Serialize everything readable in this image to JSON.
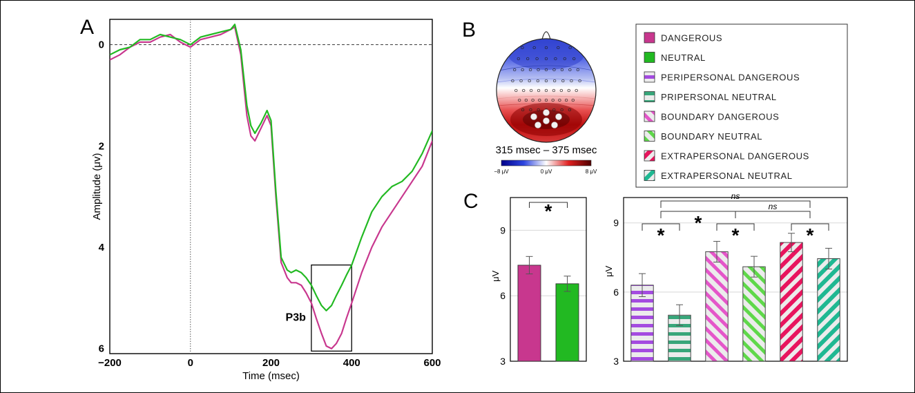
{
  "panel_labels": {
    "a": "A",
    "b": "B",
    "c": "C"
  },
  "colors": {
    "dangerous": "#c8378e",
    "neutral": "#22b922",
    "peripersonal_dangerous": "#a44be0",
    "peripersonal_neutral": "#38a67a",
    "boundary_dangerous": "#e456c9",
    "boundary_neutral": "#5fd84a",
    "extrapersonal_dangerous": "#e8155e",
    "extrapersonal_neutral": "#1fb892"
  },
  "legend": {
    "items": [
      {
        "label": "DANGEROUS",
        "color": "#c8378e",
        "pattern": "solid"
      },
      {
        "label": "NEUTRAL",
        "color": "#22b922",
        "pattern": "solid"
      },
      {
        "label": "PERIPERSONAL DANGEROUS",
        "color": "#a44be0",
        "pattern": "horizontal"
      },
      {
        "label": "PRIPERSONAL NEUTRAL",
        "color": "#38a67a",
        "pattern": "horizontal"
      },
      {
        "label": "BOUNDARY DANGEROUS",
        "color": "#e456c9",
        "pattern": "diagonal-up"
      },
      {
        "label": "BOUNDARY NEUTRAL",
        "color": "#5fd84a",
        "pattern": "diagonal-up"
      },
      {
        "label": "EXTRAPERSONAL DANGEROUS",
        "color": "#e8155e",
        "pattern": "diagonal-down"
      },
      {
        "label": "EXTRAPERSONAL NEUTRAL",
        "color": "#1fb892",
        "pattern": "diagonal-down"
      }
    ]
  },
  "topomap": {
    "time_window": "315 msec – 375 msec",
    "colorbar_ticks": [
      "−8 μV",
      "0 μV",
      "8 μV"
    ]
  },
  "chart_data": [
    {
      "id": "erp",
      "type": "line",
      "xlabel": "Time (msec)",
      "ylabel": "Amplitude  (μv)",
      "xlim": [
        -200,
        600
      ],
      "ylim": [
        -0.5,
        6.1
      ],
      "y_inverted": true,
      "xticks": [
        -200,
        0,
        200,
        400,
        600
      ],
      "yticks": [
        0,
        2,
        4,
        6
      ],
      "x": [
        -200,
        -175,
        -150,
        -125,
        -100,
        -75,
        -50,
        -25,
        0,
        25,
        50,
        75,
        100,
        110,
        125,
        140,
        150,
        160,
        175,
        190,
        200,
        212,
        225,
        240,
        250,
        262,
        275,
        287,
        300,
        312,
        325,
        337,
        350,
        362,
        375,
        387,
        400,
        425,
        450,
        475,
        500,
        525,
        550,
        575,
        600
      ],
      "series": [
        {
          "name": "DANGEROUS",
          "values": [
            0.3,
            0.2,
            0.05,
            -0.05,
            -0.05,
            -0.15,
            -0.2,
            -0.05,
            0.05,
            -0.1,
            -0.15,
            -0.2,
            -0.3,
            -0.35,
            0.2,
            1.4,
            1.8,
            1.9,
            1.65,
            1.4,
            1.6,
            3.0,
            4.3,
            4.6,
            4.7,
            4.7,
            4.75,
            4.9,
            5.1,
            5.4,
            5.7,
            5.95,
            6.0,
            5.9,
            5.7,
            5.4,
            5.1,
            4.5,
            4.0,
            3.6,
            3.3,
            3.0,
            2.7,
            2.4,
            1.9
          ]
        },
        {
          "name": "NEUTRAL",
          "values": [
            0.2,
            0.1,
            0.05,
            -0.1,
            -0.1,
            -0.2,
            -0.15,
            -0.1,
            0.0,
            -0.15,
            -0.2,
            -0.25,
            -0.3,
            -0.4,
            0.1,
            1.2,
            1.6,
            1.75,
            1.55,
            1.3,
            1.5,
            2.9,
            4.2,
            4.45,
            4.5,
            4.45,
            4.5,
            4.6,
            4.75,
            4.95,
            5.15,
            5.25,
            5.15,
            4.95,
            4.75,
            4.55,
            4.35,
            3.8,
            3.3,
            3.0,
            2.8,
            2.7,
            2.5,
            2.15,
            1.7
          ]
        }
      ],
      "annotations": {
        "zero_label": "0",
        "component_label": "P3b",
        "window": [
          300,
          400
        ]
      }
    },
    {
      "id": "bars-main",
      "type": "bar",
      "ylabel": "μV",
      "ylim": [
        3,
        10.5
      ],
      "yticks": [
        3,
        6,
        9
      ],
      "categories": [
        "DANGEROUS",
        "NEUTRAL"
      ],
      "values": [
        7.4,
        6.55
      ],
      "errors": [
        0.4,
        0.35
      ],
      "significance": [
        {
          "from": 0,
          "to": 1,
          "label": "*"
        }
      ]
    },
    {
      "id": "bars-space",
      "type": "bar",
      "ylabel": "μV",
      "ylim": [
        3,
        10.1
      ],
      "yticks": [
        3,
        6,
        9
      ],
      "categories": [
        "PERIPERSONAL DANGEROUS",
        "PRIPERSONAL NEUTRAL",
        "BOUNDARY DANGEROUS",
        "BOUNDARY NEUTRAL",
        "EXTRAPERSONAL DANGEROUS",
        "EXTRAPERSONAL NEUTRAL"
      ],
      "values": [
        6.3,
        5.0,
        7.75,
        7.1,
        8.15,
        7.45
      ],
      "errors": [
        0.5,
        0.45,
        0.45,
        0.45,
        0.4,
        0.45
      ],
      "significance": [
        {
          "from": 0,
          "to": 1,
          "label": "*",
          "level": 0
        },
        {
          "from": 2,
          "to": 3,
          "label": "*",
          "level": 0
        },
        {
          "from": 4,
          "to": 5,
          "label": "*",
          "level": 0
        },
        {
          "from": 0.5,
          "to": 2.5,
          "label": "*",
          "level": 1
        },
        {
          "from": 2.5,
          "to": 4.5,
          "label": "ns",
          "level": 1
        },
        {
          "from": 0.5,
          "to": 4.5,
          "label": "ns",
          "level": 2
        }
      ]
    }
  ]
}
